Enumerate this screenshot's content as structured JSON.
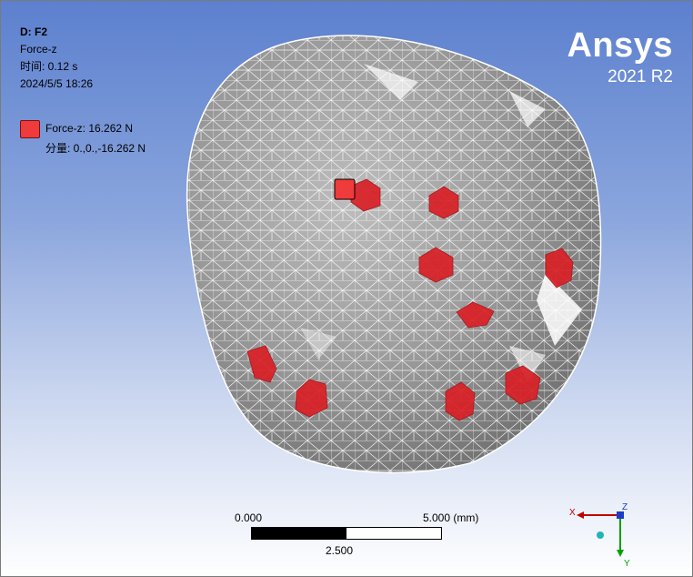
{
  "info": {
    "title": "D: F2",
    "label": "Force-z",
    "time": "时间: 0.12 s",
    "date": "2024/5/5 18:26"
  },
  "legend": {
    "item": "Force-z: 16.262 N",
    "components": "分量: 0.,0.,-16.262 N",
    "color": "#ef3b3b"
  },
  "brand": {
    "name": "Ansys",
    "version": "2021 R2"
  },
  "scale_bar": {
    "left": "0.000",
    "right": "5.000 (mm)",
    "mid": "2.500"
  },
  "triad": {
    "x": "X",
    "y": "Y",
    "z": "Z"
  }
}
